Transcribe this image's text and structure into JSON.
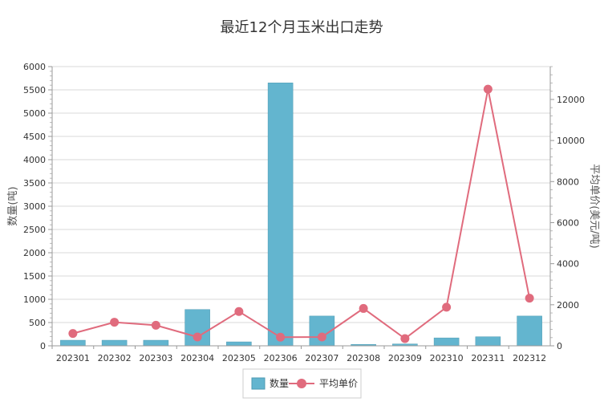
{
  "chart_data": {
    "type": "bar",
    "title": "最近12个月玉米出口走势",
    "ylabel": "数量(吨)",
    "y2label": "平均单价(美元/吨)",
    "categories": [
      "202301",
      "202302",
      "202303",
      "202304",
      "202305",
      "202306",
      "202307",
      "202308",
      "202309",
      "202310",
      "202311",
      "202312"
    ],
    "series": [
      {
        "name": "数量",
        "type": "bar",
        "axis": "left",
        "color": "#63b5cf",
        "values": [
          120,
          120,
          120,
          780,
          85,
          5650,
          640,
          30,
          40,
          170,
          195,
          640
        ]
      },
      {
        "name": "平均单价",
        "type": "line",
        "axis": "right",
        "color": "#e06b7d",
        "values": [
          600,
          1150,
          1000,
          430,
          1670,
          420,
          430,
          1820,
          350,
          1880,
          12500,
          2320
        ]
      }
    ],
    "ylim": [
      0,
      6000
    ],
    "yticks": [
      0,
      500,
      1000,
      1500,
      2000,
      2500,
      3000,
      3500,
      4000,
      4500,
      5000,
      5500,
      6000
    ],
    "y2lim": [
      0,
      13600
    ],
    "y2ticks": [
      0,
      2000,
      4000,
      6000,
      8000,
      10000,
      12000
    ],
    "grid": true,
    "legend_position": "bottom"
  }
}
